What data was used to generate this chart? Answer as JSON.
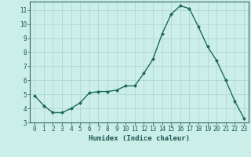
{
  "x": [
    0,
    1,
    2,
    3,
    4,
    5,
    6,
    7,
    8,
    9,
    10,
    11,
    12,
    13,
    14,
    15,
    16,
    17,
    18,
    19,
    20,
    21,
    22,
    23
  ],
  "y": [
    4.9,
    4.2,
    3.7,
    3.7,
    4.0,
    4.4,
    5.1,
    5.2,
    5.2,
    5.3,
    5.6,
    5.6,
    6.5,
    7.5,
    9.3,
    10.7,
    11.3,
    11.1,
    9.8,
    8.4,
    7.4,
    6.0,
    4.5,
    3.3
  ],
  "line_color": "#1a6b5a",
  "marker": "D",
  "markersize": 2.0,
  "linewidth": 1.0,
  "xlabel": "Humidex (Indice chaleur)",
  "xlim": [
    -0.5,
    23.5
  ],
  "ylim": [
    3.0,
    11.6
  ],
  "yticks": [
    3,
    4,
    5,
    6,
    7,
    8,
    9,
    10,
    11
  ],
  "xticks": [
    0,
    1,
    2,
    3,
    4,
    5,
    6,
    7,
    8,
    9,
    10,
    11,
    12,
    13,
    14,
    15,
    16,
    17,
    18,
    19,
    20,
    21,
    22,
    23
  ],
  "bg_color": "#cceee8",
  "grid_color": "#aad4ce",
  "axis_color": "#336666",
  "tick_color": "#1a5555",
  "label_color": "#1a5555",
  "xlabel_fontsize": 6.5,
  "tick_fontsize": 5.5,
  "figsize": [
    3.2,
    2.0
  ],
  "dpi": 100
}
